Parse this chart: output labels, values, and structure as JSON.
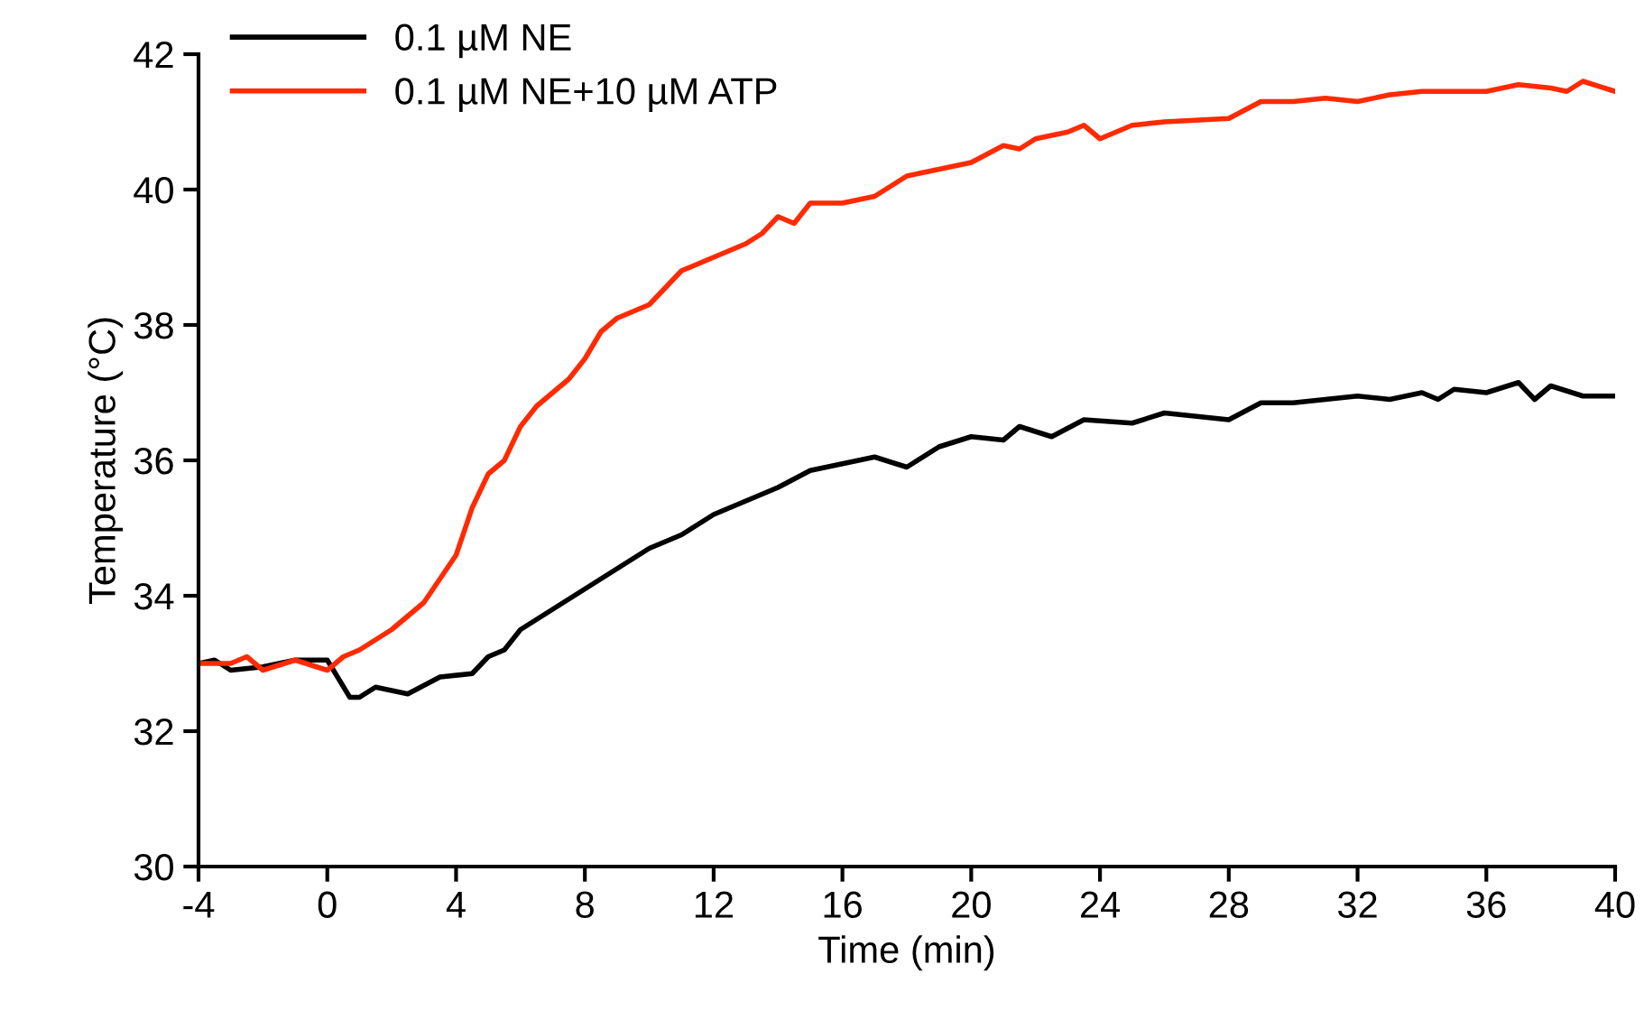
{
  "chart_data": {
    "type": "line",
    "xlabel": "Time (min)",
    "ylabel": "Temperature (°C)",
    "xlim": [
      -4,
      40
    ],
    "xticks": [
      -4,
      0,
      4,
      8,
      12,
      16,
      20,
      24,
      28,
      32,
      36,
      40
    ],
    "ylim": [
      30,
      42
    ],
    "yticks": [
      30,
      32,
      34,
      36,
      38,
      40,
      42
    ],
    "grid": false,
    "legend": "top left",
    "marker": "none",
    "line_style": "solid",
    "series": [
      {
        "name": "0.1 µM NE",
        "color": "#000000",
        "x": [
          -4,
          -3.5,
          -3,
          -2,
          -1,
          0,
          0.7,
          1,
          1.5,
          2.5,
          3.5,
          4.5,
          5,
          5.5,
          6,
          7,
          8,
          9,
          10,
          11,
          12,
          13,
          14,
          15,
          16,
          17,
          18,
          19,
          20,
          21,
          21.5,
          22.5,
          23.5,
          25,
          26,
          28,
          29,
          30,
          32,
          33,
          34,
          34.5,
          35,
          36,
          37,
          37.5,
          38,
          39,
          40
        ],
        "values": [
          33.0,
          33.05,
          32.9,
          32.95,
          33.05,
          33.05,
          32.5,
          32.5,
          32.65,
          32.55,
          32.8,
          32.85,
          33.1,
          33.2,
          33.5,
          33.8,
          34.1,
          34.4,
          34.7,
          34.9,
          35.2,
          35.4,
          35.6,
          35.85,
          35.95,
          36.05,
          35.9,
          36.2,
          36.35,
          36.3,
          36.5,
          36.35,
          36.6,
          36.55,
          36.7,
          36.6,
          36.85,
          36.85,
          36.95,
          36.9,
          37.0,
          36.9,
          37.05,
          37.0,
          37.15,
          36.9,
          37.1,
          36.95,
          36.95
        ]
      },
      {
        "name": "0.1 µM NE+10 µM ATP",
        "color": "#ff2a00",
        "x": [
          -4,
          -3,
          -2.5,
          -2,
          -1,
          0,
          0.5,
          1,
          2,
          3,
          4,
          4.5,
          5,
          5.5,
          6,
          6.5,
          7,
          7.5,
          8,
          8.5,
          9,
          10,
          11,
          12,
          13,
          13.5,
          14,
          14.5,
          15,
          16,
          17,
          18,
          19,
          20,
          21,
          21.5,
          22,
          23,
          23.5,
          24,
          25,
          26,
          28,
          29,
          30,
          31,
          32,
          33,
          34,
          36,
          37,
          38,
          38.5,
          39,
          40
        ],
        "values": [
          33.0,
          33.0,
          33.1,
          32.9,
          33.05,
          32.9,
          33.1,
          33.2,
          33.5,
          33.9,
          34.6,
          35.3,
          35.8,
          36.0,
          36.5,
          36.8,
          37.0,
          37.2,
          37.5,
          37.9,
          38.1,
          38.3,
          38.8,
          39.0,
          39.2,
          39.35,
          39.6,
          39.5,
          39.8,
          39.8,
          39.9,
          40.2,
          40.3,
          40.4,
          40.65,
          40.6,
          40.75,
          40.85,
          40.95,
          40.75,
          40.95,
          41.0,
          41.05,
          41.3,
          41.3,
          41.35,
          41.3,
          41.4,
          41.45,
          41.45,
          41.55,
          41.5,
          41.45,
          41.6,
          41.45
        ]
      }
    ]
  }
}
